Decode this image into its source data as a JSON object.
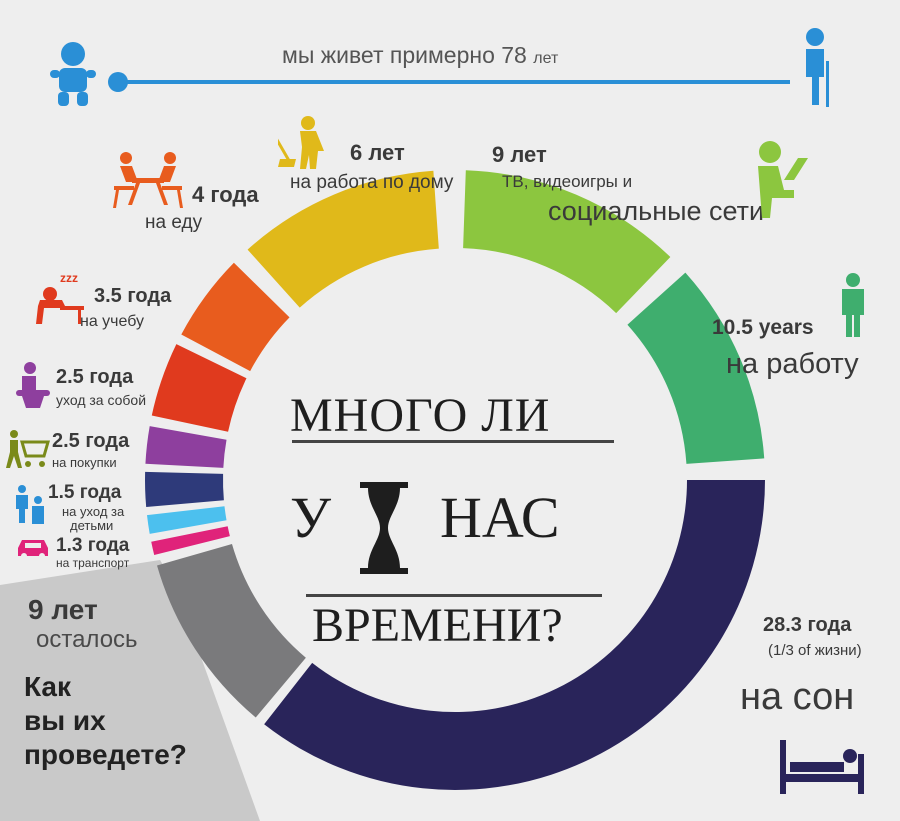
{
  "header": {
    "lifespan_text": "мы живет примерно 78",
    "lifespan_unit": "лет"
  },
  "title": {
    "line1": "МНОГО ЛИ",
    "line2_left": "У",
    "line2_right": "НАС",
    "line3": "ВРЕМЕНИ?"
  },
  "segments": [
    {
      "id": "eating",
      "value": "4 года",
      "label": "на еду",
      "color": "#e85c1e",
      "icon": "people-eating-icon"
    },
    {
      "id": "housework",
      "value": "6 лет",
      "label": "на работа по дому",
      "color": "#e0b91a",
      "icon": "mopping-person-icon"
    },
    {
      "id": "tv",
      "value": "9 лет",
      "label": "ТВ, видеоигры и",
      "label2": "социальные сети",
      "color": "#8cc63f",
      "icon": "person-laptop-icon"
    },
    {
      "id": "work",
      "value": "10.5 years",
      "label": "на работу",
      "color": "#3fae6e",
      "icon": "businessman-icon"
    },
    {
      "id": "sleep",
      "value": "28.3 года",
      "label": "(1/3 of жизни)",
      "label2": "на сон",
      "color": "#29245a",
      "icon": "bed-icon"
    },
    {
      "id": "study",
      "value": "3.5 года",
      "label": "на учебу",
      "color": "#e03a1e",
      "icon": "student-sleeping-icon"
    },
    {
      "id": "selfcare",
      "value": "2.5 года",
      "label": "уход за собой",
      "color": "#8e3f9e",
      "icon": "toilet-icon"
    },
    {
      "id": "shopping",
      "value": "2.5 года",
      "label": "на покупки",
      "color": "#2e3a7a",
      "icon": "shopping-cart-icon"
    },
    {
      "id": "childcare",
      "value": "1.5 года",
      "label": "на уход за",
      "label2": "детьми",
      "color": "#4cc0ee",
      "icon": "parent-child-icon"
    },
    {
      "id": "transport",
      "value": "1.3 года",
      "label": "на транспорт",
      "color": "#e0237a",
      "icon": "car-icon"
    },
    {
      "id": "remaining",
      "value": "9 лет",
      "label": "осталось",
      "color": "#7a7a7c",
      "icon": ""
    }
  ],
  "question": {
    "line1": "Как",
    "line2": "вы их",
    "line3": "проведете?"
  },
  "colors": {
    "timeline": "#2a8fd6",
    "icons_blue": "#2a8fd6",
    "remaining_panel": "#c9c9c9"
  }
}
